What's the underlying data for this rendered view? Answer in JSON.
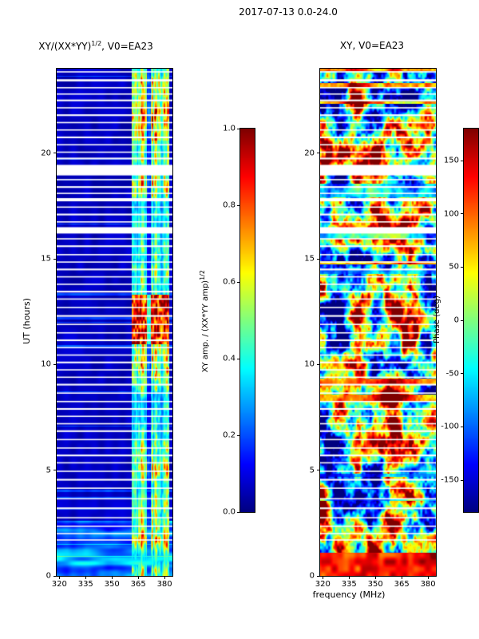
{
  "figure": {
    "title": "2017-07-13 0.0-24.0",
    "xlabel": "frequency (MHz)",
    "ylabel": "UT (hours)"
  },
  "chart_data": {
    "type": "heatmap",
    "colormap": "jet",
    "panels": [
      {
        "id": "amp",
        "title_parts": [
          "XY/(XX*YY)",
          "1/2",
          ", V0=EA23"
        ],
        "mode": "amp",
        "x_range": [
          318.5,
          384.5
        ],
        "y_range": [
          0,
          24
        ],
        "x_ticks": [
          {
            "v": 320,
            "label": "320"
          },
          {
            "v": 335,
            "label": "335"
          },
          {
            "v": 350,
            "label": "350"
          },
          {
            "v": 365,
            "label": "365"
          },
          {
            "v": 380,
            "label": "380"
          }
        ],
        "y_ticks": [
          {
            "v": 0,
            "label": "0"
          },
          {
            "v": 5,
            "label": "5"
          },
          {
            "v": 10,
            "label": "10"
          },
          {
            "v": 15,
            "label": "15"
          },
          {
            "v": 20,
            "label": "20"
          }
        ],
        "value_range": [
          0,
          1
        ],
        "band": [
          361.5,
          382.5
        ],
        "band_gap": [
          369.8,
          372.3
        ],
        "burst_time": [
          10.95,
          13.3
        ],
        "bottom_glow": [
          0,
          2.6
        ],
        "seed": 7
      },
      {
        "id": "phase",
        "title_parts": [
          "XY, V0=EA23",
          "",
          ""
        ],
        "mode": "phase",
        "x_range": [
          318.5,
          384.5
        ],
        "y_range": [
          0,
          24
        ],
        "x_ticks": [
          {
            "v": 320,
            "label": "320"
          },
          {
            "v": 335,
            "label": "335"
          },
          {
            "v": 350,
            "label": "350"
          },
          {
            "v": 365,
            "label": "365"
          },
          {
            "v": 380,
            "label": "380"
          }
        ],
        "y_ticks": [
          {
            "v": 0,
            "label": "0"
          },
          {
            "v": 5,
            "label": "5"
          },
          {
            "v": 10,
            "label": "10"
          },
          {
            "v": 15,
            "label": "15"
          },
          {
            "v": 20,
            "label": "20"
          }
        ],
        "value_range": [
          -180,
          180
        ],
        "features": [
          {
            "t": 22.5,
            "f": 336,
            "st": 1.8,
            "sf": 11,
            "dv": 0.22
          },
          {
            "t": 10.2,
            "f": 330,
            "st": 1.6,
            "sf": 9,
            "dv": -0.26
          },
          {
            "t": 12.5,
            "f": 372,
            "st": 1.6,
            "sf": 9,
            "dv": 0.2
          },
          {
            "t": 6.2,
            "f": 326,
            "st": 1.2,
            "sf": 8,
            "dv": -0.22
          },
          {
            "t": 17.2,
            "f": 352,
            "st": 1.6,
            "sf": 14,
            "dv": 0.12
          },
          {
            "t": 2.6,
            "f": 379,
            "st": 1.3,
            "sf": 7,
            "dv": 0.26
          },
          {
            "t": 20.2,
            "f": 368,
            "st": 1.0,
            "sf": 8,
            "dv": -0.2
          },
          {
            "t": 8.5,
            "f": 360,
            "st": 1.2,
            "sf": 10,
            "dv": 0.18
          }
        ],
        "seed": 11
      }
    ],
    "gaps": [
      [
        23.85,
        0.06
      ],
      [
        23.45,
        0.1
      ],
      [
        23.1,
        0.06
      ],
      [
        22.8,
        0.06
      ],
      [
        22.5,
        0.08
      ],
      [
        22.15,
        0.06
      ],
      [
        21.8,
        0.08
      ],
      [
        21.45,
        0.06
      ],
      [
        21.1,
        0.06
      ],
      [
        20.75,
        0.08
      ],
      [
        20.4,
        0.06
      ],
      [
        20.05,
        0.06
      ],
      [
        19.75,
        0.08
      ],
      [
        19.2,
        0.5
      ],
      [
        18.75,
        0.06
      ],
      [
        18.4,
        0.08
      ],
      [
        18.1,
        0.06
      ],
      [
        17.8,
        0.15
      ],
      [
        17.45,
        0.06
      ],
      [
        17.1,
        0.08
      ],
      [
        16.75,
        0.06
      ],
      [
        16.35,
        0.3
      ],
      [
        15.95,
        0.06
      ],
      [
        15.6,
        0.08
      ],
      [
        15.2,
        0.06
      ],
      [
        14.85,
        0.06
      ],
      [
        14.5,
        0.08
      ],
      [
        14.15,
        0.06
      ],
      [
        13.8,
        0.06
      ],
      [
        13.45,
        0.08
      ],
      [
        13.1,
        0.06
      ],
      [
        12.7,
        0.06
      ],
      [
        12.3,
        0.08
      ],
      [
        11.9,
        0.06
      ],
      [
        11.5,
        0.06
      ],
      [
        11.15,
        0.08
      ],
      [
        10.8,
        0.06
      ],
      [
        10.45,
        0.06
      ],
      [
        10.1,
        0.08
      ],
      [
        9.75,
        0.06
      ],
      [
        9.4,
        0.06
      ],
      [
        9.05,
        0.08
      ],
      [
        8.65,
        0.06
      ],
      [
        8.25,
        0.06
      ],
      [
        7.9,
        0.08
      ],
      [
        7.55,
        0.06
      ],
      [
        7.2,
        0.06
      ],
      [
        6.85,
        0.08
      ],
      [
        6.45,
        0.06
      ],
      [
        6.05,
        0.06
      ],
      [
        5.7,
        0.08
      ],
      [
        5.35,
        0.06
      ],
      [
        4.95,
        0.06
      ],
      [
        4.55,
        0.08
      ],
      [
        4.15,
        0.06
      ],
      [
        3.65,
        0.06
      ],
      [
        3.2,
        0.08
      ],
      [
        2.75,
        0.06
      ],
      [
        2.35,
        0.06
      ],
      [
        2.0,
        0.06
      ],
      [
        1.7,
        0.06
      ]
    ],
    "colorbars": [
      {
        "id": "amp",
        "range": [
          0,
          1
        ],
        "ticks": [
          {
            "v": 0.0,
            "label": "0.0"
          },
          {
            "v": 0.2,
            "label": "0.2"
          },
          {
            "v": 0.4,
            "label": "0.4"
          },
          {
            "v": 0.6,
            "label": "0.6"
          },
          {
            "v": 0.8,
            "label": "0.8"
          },
          {
            "v": 1.0,
            "label": "1.0"
          }
        ],
        "label_parts": [
          "XY amp. / (XX*YY amp)",
          "1/2"
        ]
      },
      {
        "id": "phase",
        "range": [
          -180,
          180
        ],
        "ticks": [
          {
            "v": 150,
            "label": "150"
          },
          {
            "v": 100,
            "label": "100"
          },
          {
            "v": 50,
            "label": "50"
          },
          {
            "v": 0,
            "label": "0"
          },
          {
            "v": -50,
            "label": "-50"
          },
          {
            "v": -100,
            "label": "-100"
          },
          {
            "v": -150,
            "label": "-150"
          }
        ],
        "label": "Phase (deg)"
      }
    ]
  }
}
